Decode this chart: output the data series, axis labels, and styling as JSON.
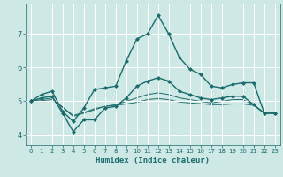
{
  "title": "",
  "xlabel": "Humidex (Indice chaleur)",
  "ylabel": "",
  "bg_color": "#cde8e5",
  "line_color": "#1a6b6b",
  "grid_color": "#ffffff",
  "xlim": [
    -0.5,
    23.5
  ],
  "ylim": [
    3.7,
    7.9
  ],
  "xticks": [
    0,
    1,
    2,
    3,
    4,
    5,
    6,
    7,
    8,
    9,
    10,
    11,
    12,
    13,
    14,
    15,
    16,
    17,
    18,
    19,
    20,
    21,
    22,
    23
  ],
  "yticks": [
    4,
    5,
    6,
    7
  ],
  "line1_x": [
    0,
    1,
    2,
    3,
    4,
    5,
    6,
    7,
    8,
    9,
    10,
    11,
    12,
    13,
    14,
    15,
    16,
    17,
    18,
    19,
    20,
    21,
    22,
    23
  ],
  "line1_y": [
    5.0,
    5.2,
    5.3,
    4.7,
    4.4,
    4.8,
    5.35,
    5.4,
    5.45,
    6.2,
    6.85,
    7.0,
    7.55,
    7.0,
    6.3,
    5.95,
    5.8,
    5.45,
    5.4,
    5.5,
    5.55,
    5.55,
    4.65,
    4.65
  ],
  "line2_x": [
    0,
    1,
    2,
    3,
    4,
    5,
    6,
    7,
    8,
    9,
    10,
    11,
    12,
    13,
    14,
    15,
    16,
    17,
    18,
    19,
    20,
    21,
    22,
    23
  ],
  "line2_y": [
    5.0,
    5.1,
    5.15,
    4.65,
    4.1,
    4.45,
    4.45,
    4.8,
    4.85,
    5.1,
    5.45,
    5.6,
    5.7,
    5.6,
    5.3,
    5.2,
    5.1,
    5.05,
    5.1,
    5.15,
    5.15,
    4.9,
    4.65,
    4.65
  ],
  "line3_x": [
    0,
    1,
    2,
    3,
    4,
    5,
    6,
    7,
    8,
    9,
    10,
    11,
    12,
    13,
    14,
    15,
    16,
    17,
    18,
    19,
    20,
    21,
    22,
    23
  ],
  "line3_y": [
    5.0,
    5.05,
    5.1,
    4.82,
    4.55,
    4.65,
    4.75,
    4.85,
    4.9,
    5.0,
    5.1,
    5.2,
    5.25,
    5.2,
    5.1,
    5.05,
    5.0,
    4.95,
    5.0,
    5.05,
    5.05,
    4.9,
    4.65,
    4.65
  ],
  "line4_x": [
    0,
    1,
    2,
    3,
    4,
    5,
    6,
    7,
    8,
    9,
    10,
    11,
    12,
    13,
    14,
    15,
    16,
    17,
    18,
    19,
    20,
    21,
    22,
    23
  ],
  "line4_y": [
    5.0,
    5.02,
    5.05,
    4.83,
    4.58,
    4.67,
    4.78,
    4.85,
    4.88,
    4.92,
    4.97,
    5.05,
    5.08,
    5.05,
    4.98,
    4.95,
    4.93,
    4.9,
    4.9,
    4.92,
    4.92,
    4.88,
    4.65,
    4.65
  ]
}
